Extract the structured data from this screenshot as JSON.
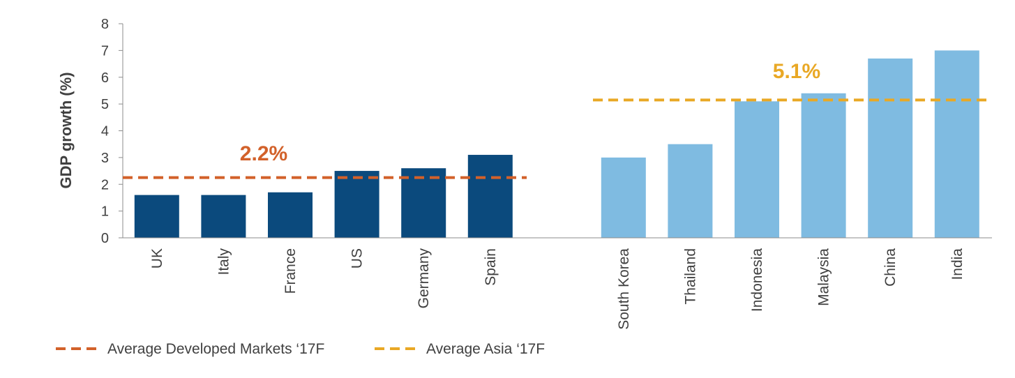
{
  "chart_data": {
    "type": "bar",
    "ylabel": "GDP growth (%)",
    "ylim": [
      0,
      8
    ],
    "yticks": [
      "0",
      "1",
      "2",
      "3",
      "4",
      "5",
      "6",
      "7",
      "8"
    ],
    "groups": [
      {
        "name": "Average Developed Markets ‘17F",
        "color": "#0b4a7d",
        "categories": [
          "UK",
          "Italy",
          "France",
          "US",
          "Germany",
          "Spain"
        ],
        "values": [
          1.6,
          1.6,
          1.7,
          2.5,
          2.6,
          3.1
        ]
      },
      {
        "name": "Average Asia ‘17F",
        "color": "#7fbbe1",
        "categories": [
          "South Korea",
          "Thailand",
          "Indonesia",
          "Malaysia",
          "China",
          "India"
        ],
        "values": [
          3.0,
          3.5,
          5.1,
          5.4,
          6.7,
          7.0
        ]
      }
    ],
    "averages": [
      {
        "label": "2.2%",
        "value": 2.25,
        "color": "#d2612a",
        "legend": "Average Developed Markets ‘17F"
      },
      {
        "label": "5.1%",
        "value": 5.15,
        "color": "#e9a825",
        "legend": "Average Asia ‘17F"
      }
    ],
    "legend_position": "bottom-left",
    "grid": false
  }
}
